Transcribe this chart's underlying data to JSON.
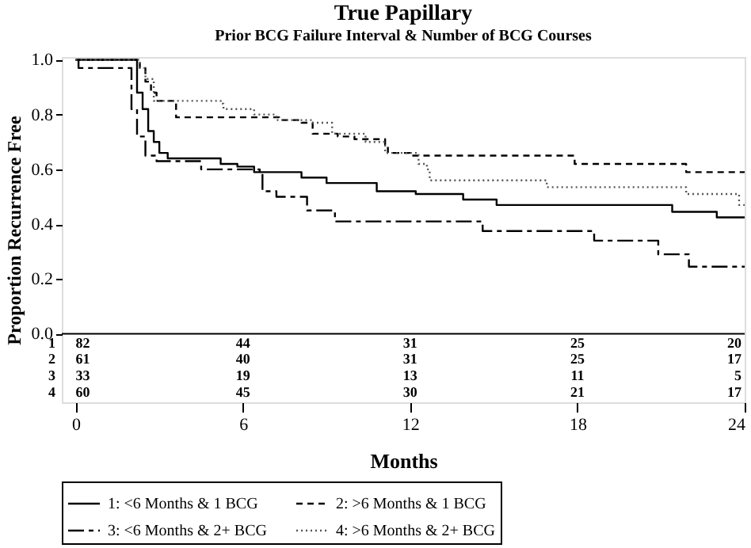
{
  "chart_data": {
    "type": "step",
    "title": "True Papillary",
    "subtitle": "Prior BCG Failure Interval & Number of BCG Courses",
    "xlabel": "Months",
    "ylabel": "Proportion Recurrence Free",
    "xlim": [
      -0.5,
      24
    ],
    "ylim": [
      -0.25,
      1.01
    ],
    "xticks": [
      0,
      6,
      12,
      18,
      24
    ],
    "yticks": [
      {
        "value": 0,
        "label": "0.0"
      },
      {
        "value": 0.2,
        "label": "0.2"
      },
      {
        "value": 0.4,
        "label": "0.4"
      },
      {
        "value": 0.6,
        "label": "0.6"
      },
      {
        "value": 0.8,
        "label": "0.8"
      },
      {
        "value": 1,
        "label": "1.0"
      }
    ],
    "grid": false,
    "legend": "bottom",
    "ref_lines": [
      {
        "axis": "y",
        "value": 0,
        "color": "#000000",
        "line_style": "solid"
      }
    ],
    "series": [
      {
        "name": "1: <6 Months & 1 BCG",
        "color": "#000000",
        "line_style": "solid",
        "x": [
          0,
          2.2,
          2.4,
          2.6,
          2.8,
          3.0,
          3.3,
          5.2,
          5.8,
          6.4,
          8.1,
          9.0,
          10.8,
          12.2,
          13.9,
          15.1,
          21.4,
          23.0,
          24
        ],
        "values": [
          1.0,
          0.88,
          0.82,
          0.74,
          0.7,
          0.66,
          0.64,
          0.62,
          0.61,
          0.59,
          0.57,
          0.55,
          0.52,
          0.51,
          0.49,
          0.47,
          0.445,
          0.425,
          0.425
        ]
      },
      {
        "name": "2: >6 Months & 1 BCG",
        "color": "#000000",
        "line_style": "dashed",
        "x": [
          0,
          2.3,
          2.5,
          2.7,
          2.9,
          3.6,
          7.3,
          8.1,
          8.5,
          9.4,
          10.0,
          11.1,
          11.2,
          12.0,
          17.9,
          21.9,
          24
        ],
        "values": [
          1.0,
          0.97,
          0.92,
          0.88,
          0.85,
          0.79,
          0.78,
          0.77,
          0.73,
          0.72,
          0.71,
          0.69,
          0.66,
          0.65,
          0.62,
          0.59,
          0.59
        ]
      },
      {
        "name": "3: <6 Months & 2+ BCG",
        "color": "#000000",
        "line_style": "dashdot",
        "x": [
          0,
          0.1,
          2.0,
          2.2,
          2.5,
          2.9,
          4.5,
          6.6,
          6.7,
          7.2,
          8.3,
          9.3,
          14.6,
          18.6,
          20.9,
          22.0,
          24
        ],
        "values": [
          1.0,
          0.97,
          0.82,
          0.72,
          0.65,
          0.63,
          0.6,
          0.59,
          0.52,
          0.5,
          0.45,
          0.41,
          0.375,
          0.34,
          0.29,
          0.245,
          0.245
        ]
      },
      {
        "name": "4: >6 Months & 2+ BCG",
        "color": "#555555",
        "line_style": "dotted",
        "x": [
          0,
          2.3,
          2.5,
          2.8,
          5.2,
          5.3,
          6.4,
          7.2,
          8.5,
          9.2,
          10.4,
          11.1,
          12.3,
          12.6,
          12.7,
          16.9,
          21.9,
          23.8,
          24
        ],
        "values": [
          1.0,
          0.97,
          0.93,
          0.85,
          0.84,
          0.82,
          0.8,
          0.78,
          0.77,
          0.73,
          0.7,
          0.66,
          0.62,
          0.6,
          0.56,
          0.535,
          0.51,
          0.47,
          0.47
        ]
      }
    ],
    "annotations": [
      "1",
      "82",
      "44",
      "31",
      "25",
      "20",
      "2",
      "61",
      "40",
      "31",
      "25",
      "17",
      "3",
      "33",
      "19",
      "13",
      "11",
      "5",
      "4",
      "60",
      "45",
      "30",
      "21",
      "17"
    ]
  }
}
